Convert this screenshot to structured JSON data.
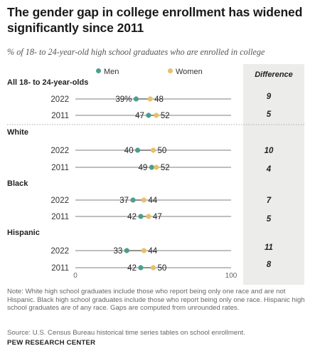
{
  "title": "The gender gap in college enrollment has widened significantly since 2011",
  "subtitle": "% of 18- to 24-year-old high school graduates who are enrolled in college",
  "difference_header": "Difference",
  "note": "Note: White high school graduates include those who report being only one race and are not Hispanic. Black high school graduates include those who report being only one race. Hispanic high school graduates are of any race. Gaps are computed from unrounded rates.",
  "source": "Source: U.S. Census Bureau historical time series tables on school enrollment.",
  "brand": "PEW RESEARCH CENTER",
  "colors": {
    "men": "#4d9e8c",
    "women": "#e6c16a",
    "line": "#999999",
    "panel": "#ececea"
  },
  "chart_data": {
    "type": "dot",
    "xlim": [
      0,
      100
    ],
    "x_ticks": [
      "0",
      "100"
    ],
    "series": [
      {
        "name": "Men"
      },
      {
        "name": "Women"
      }
    ],
    "groups": [
      {
        "label": "All 18- to 24-year-olds",
        "rows": [
          {
            "year": "2022",
            "men": 39,
            "women": 48,
            "men_label": "39%",
            "women_label": "48",
            "difference": "9"
          },
          {
            "year": "2011",
            "men": 47,
            "women": 52,
            "men_label": "47",
            "women_label": "52",
            "difference": "5"
          }
        ]
      },
      {
        "label": "White",
        "rows": [
          {
            "year": "2022",
            "men": 40,
            "women": 50,
            "men_label": "40",
            "women_label": "50",
            "difference": "10"
          },
          {
            "year": "2011",
            "men": 49,
            "women": 52,
            "men_label": "49",
            "women_label": "52",
            "difference": "4"
          }
        ]
      },
      {
        "label": "Black",
        "rows": [
          {
            "year": "2022",
            "men": 37,
            "women": 44,
            "men_label": "37",
            "women_label": "44",
            "difference": "7"
          },
          {
            "year": "2011",
            "men": 42,
            "women": 47,
            "men_label": "42",
            "women_label": "47",
            "difference": "5"
          }
        ]
      },
      {
        "label": "Hispanic",
        "rows": [
          {
            "year": "2022",
            "men": 33,
            "women": 44,
            "men_label": "33",
            "women_label": "44",
            "difference": "11"
          },
          {
            "year": "2011",
            "men": 42,
            "women": 50,
            "men_label": "42",
            "women_label": "50",
            "difference": "8"
          }
        ]
      }
    ]
  }
}
